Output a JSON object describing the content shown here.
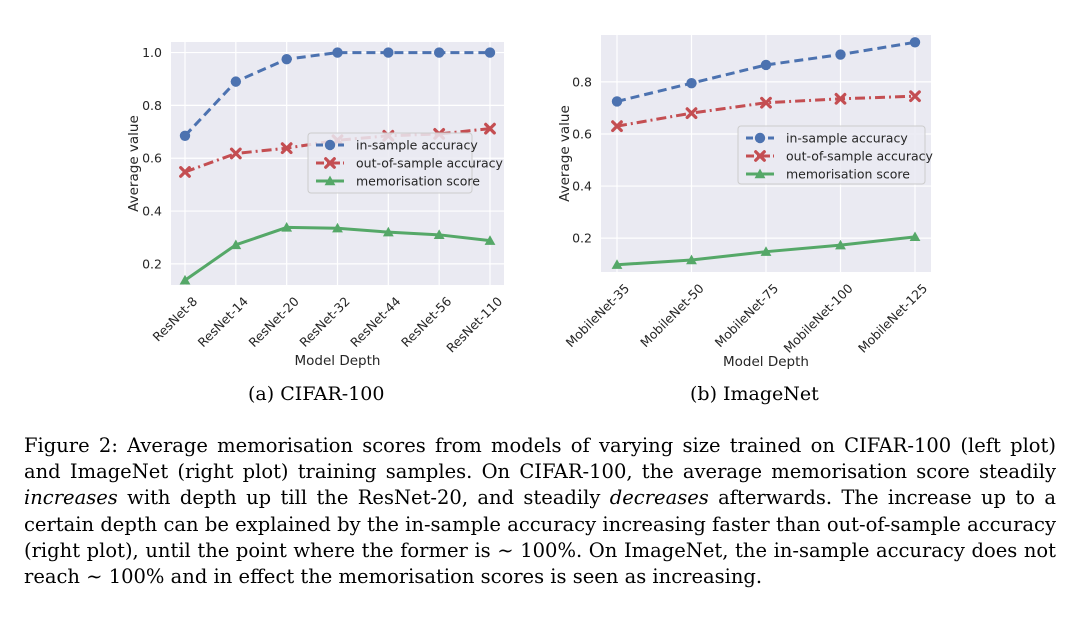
{
  "chart_data": [
    {
      "type": "line",
      "panel": "(a)",
      "xlabel": "Model Depth",
      "ylabel": "Average value",
      "categories": [
        "ResNet-8",
        "ResNet-14",
        "ResNet-20",
        "ResNet-32",
        "ResNet-44",
        "ResNet-56",
        "ResNet-110"
      ],
      "ylim": [
        0.12,
        1.04
      ],
      "yticks": [
        0.2,
        0.4,
        0.6,
        0.8,
        1.0
      ],
      "ytick_labels": [
        "0.2",
        "0.4",
        "0.6",
        "0.8",
        "1.0"
      ],
      "legend_position": "center-right",
      "grid": true,
      "series": [
        {
          "name": "in-sample accuracy",
          "color": "#4c72b0",
          "marker": "circle",
          "linestyle": "dashed",
          "values": [
            0.685,
            0.89,
            0.975,
            1.0,
            1.0,
            1.0,
            1.0
          ]
        },
        {
          "name": "out-of-sample accuracy",
          "color": "#c44e52",
          "marker": "x",
          "linestyle": "dashdot",
          "values": [
            0.548,
            0.618,
            0.638,
            0.668,
            0.685,
            0.692,
            0.712
          ]
        },
        {
          "name": "memorisation score",
          "color": "#55a868",
          "marker": "triangle",
          "linestyle": "solid",
          "values": [
            0.138,
            0.272,
            0.338,
            0.335,
            0.32,
            0.31,
            0.288
          ]
        }
      ]
    },
    {
      "type": "line",
      "panel": "(b)",
      "xlabel": "Model Depth",
      "ylabel": "Average value",
      "categories": [
        "MobileNet-35",
        "MobileNet-50",
        "MobileNet-75",
        "MobileNet-100",
        "MobileNet-125"
      ],
      "ylim": [
        0.07,
        0.98
      ],
      "yticks": [
        0.2,
        0.4,
        0.6,
        0.8
      ],
      "ytick_labels": [
        "0.2",
        "0.4",
        "0.6",
        "0.8"
      ],
      "legend_position": "center-right",
      "grid": true,
      "series": [
        {
          "name": "in-sample accuracy",
          "color": "#4c72b0",
          "marker": "circle",
          "linestyle": "dashed",
          "values": [
            0.725,
            0.795,
            0.865,
            0.905,
            0.952
          ]
        },
        {
          "name": "out-of-sample accuracy",
          "color": "#c44e52",
          "marker": "x",
          "linestyle": "dashdot",
          "values": [
            0.63,
            0.68,
            0.72,
            0.735,
            0.745
          ]
        },
        {
          "name": "memorisation score",
          "color": "#55a868",
          "marker": "triangle",
          "linestyle": "solid",
          "values": [
            0.098,
            0.116,
            0.148,
            0.173,
            0.205
          ]
        }
      ]
    }
  ],
  "subcaptions": {
    "a": "(a)  CIFAR-100",
    "b": "(b)  ImageNet"
  },
  "caption": {
    "p1": "Figure 2: Average memorisation scores from models of varying size trained on CIFAR-100 (left plot) and ImageNet (right plot) training samples. On CIFAR-100, the average memorisation score steadily ",
    "em1": "increases",
    "p2": " with depth up till the ResNet-20, and steadily ",
    "em2": "decreases",
    "p3": " afterwards. The increase up to a certain depth can be explained by the in-sample accuracy increasing faster than out-of-sample accuracy (right plot), until the point where the former is ",
    "math1": "∼ 100%",
    "p4": ". On ImageNet, the in-sample accuracy does not reach ",
    "math2": "∼ 100%",
    "p5": " and in effect the memorisation scores is seen as increasing."
  }
}
